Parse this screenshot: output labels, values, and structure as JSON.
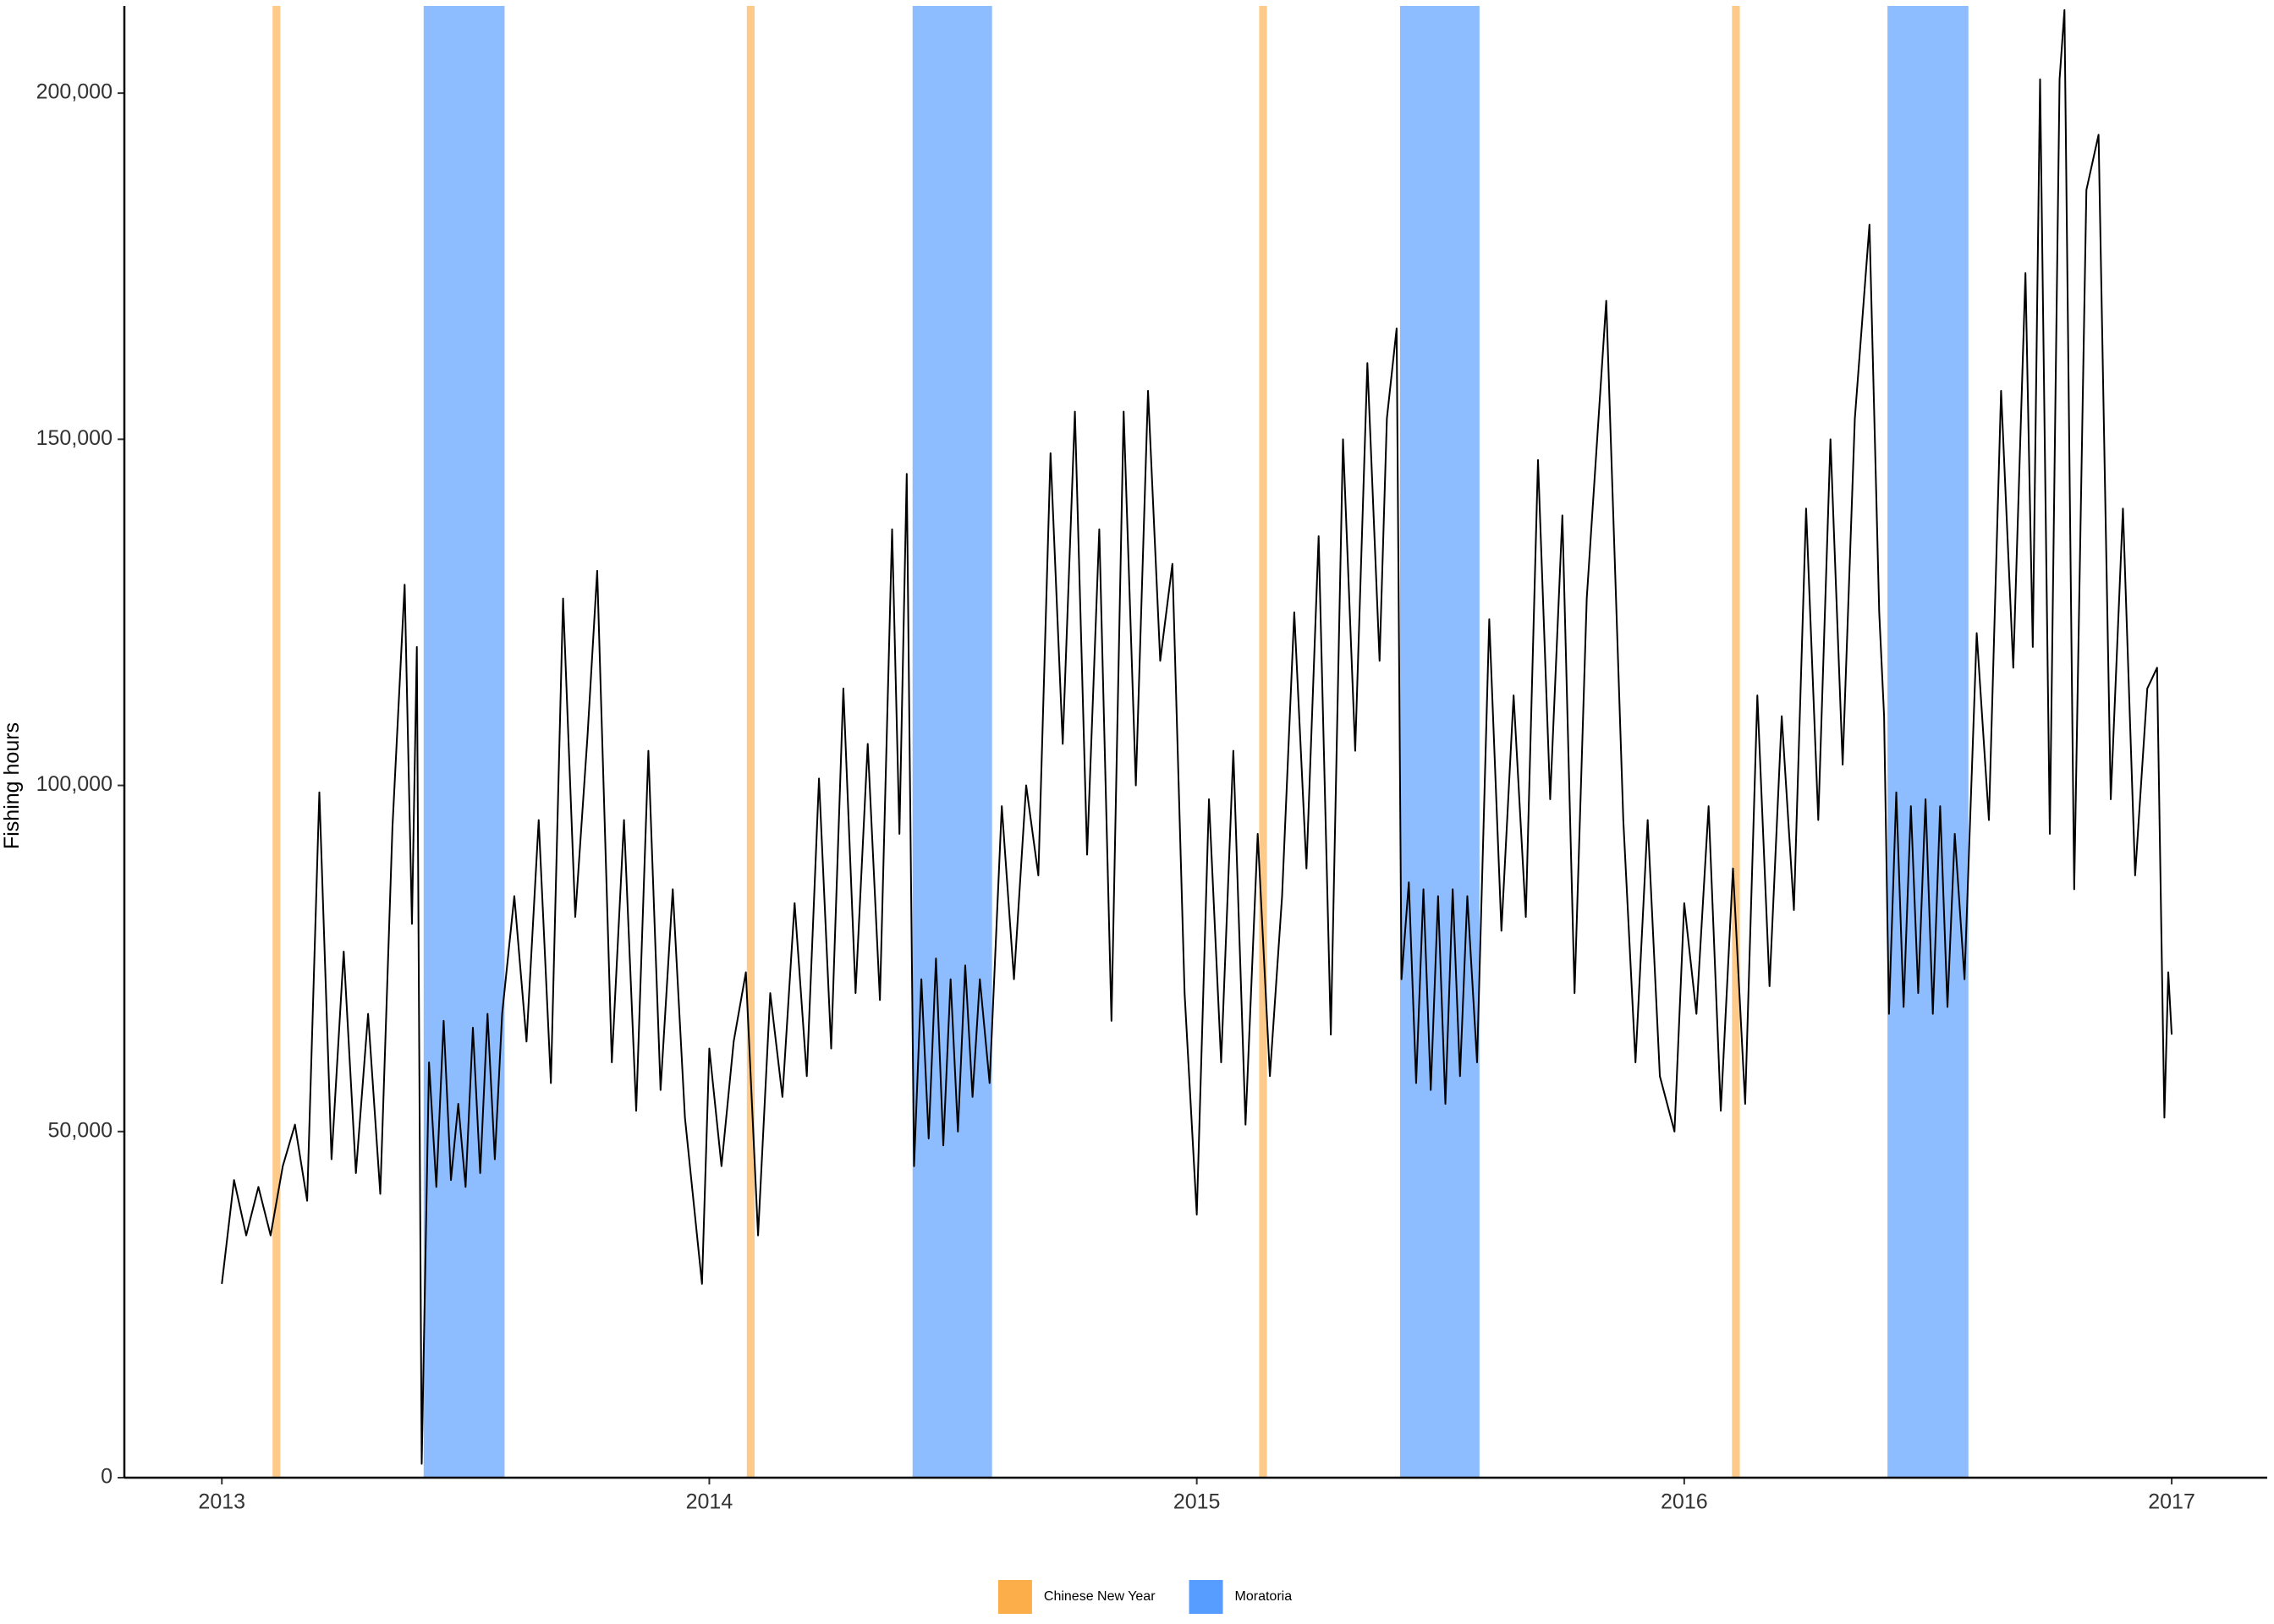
{
  "chart_data": {
    "type": "line",
    "y_label": "Fishing hours",
    "color": "#000000",
    "xlim": [
      2012.8,
      2017.196
    ],
    "ylim": [
      0,
      212600
    ],
    "xticks": [
      2013,
      2014,
      2015,
      2016,
      2017
    ],
    "yticks": [
      0,
      {
        "value": 50000,
        "label": "50,000"
      },
      {
        "value": 100000,
        "label": "100,000"
      },
      {
        "value": 150000,
        "label": "150,000"
      },
      {
        "value": 200000,
        "label": "200,000"
      }
    ],
    "legend": "bottom",
    "shaded_periods": [
      {
        "name": "Chinese New Year",
        "color": "#FCAE4A",
        "opacity": 0.65,
        "ranges": [
          [
            2013.104,
            2013.12
          ],
          [
            2014.077,
            2014.093
          ],
          [
            2015.128,
            2015.144
          ],
          [
            2016.098,
            2016.114
          ]
        ]
      },
      {
        "name": "Moratoria",
        "color": "#579DFF",
        "opacity": 0.68,
        "ranges": [
          [
            2013.414,
            2013.58
          ],
          [
            2014.417,
            2014.58
          ],
          [
            2015.417,
            2015.58
          ],
          [
            2016.417,
            2016.583
          ]
        ]
      }
    ],
    "x": [
      2013.0,
      2013.025,
      2013.05,
      2013.075,
      2013.1,
      2013.125,
      2013.15,
      2013.175,
      2013.2,
      2013.225,
      2013.25,
      2013.275,
      2013.3,
      2013.325,
      2013.35,
      2013.375,
      2013.39,
      2013.4,
      2013.41,
      2013.425,
      2013.44,
      2013.455,
      2013.47,
      2013.485,
      2013.5,
      2013.515,
      2013.53,
      2013.545,
      2013.56,
      2013.575,
      2013.6,
      2013.625,
      2013.65,
      2013.675,
      2013.7,
      2013.725,
      2013.75,
      2013.77,
      2013.8,
      2013.825,
      2013.85,
      2013.875,
      2013.9,
      2013.925,
      2013.95,
      2013.985,
      2014.0,
      2014.025,
      2014.05,
      2014.075,
      2014.1,
      2014.125,
      2014.15,
      2014.175,
      2014.2,
      2014.225,
      2014.25,
      2014.275,
      2014.3,
      2014.325,
      2014.35,
      2014.375,
      2014.39,
      2014.405,
      2014.42,
      2014.435,
      2014.45,
      2014.465,
      2014.48,
      2014.495,
      2014.51,
      2014.525,
      2014.54,
      2014.555,
      2014.575,
      2014.6,
      2014.625,
      2014.65,
      2014.675,
      2014.7,
      2014.725,
      2014.75,
      2014.775,
      2014.8,
      2014.825,
      2014.85,
      2014.875,
      2014.9,
      2014.925,
      2014.95,
      2014.975,
      2015.0,
      2015.025,
      2015.05,
      2015.075,
      2015.1,
      2015.125,
      2015.15,
      2015.175,
      2015.2,
      2015.225,
      2015.25,
      2015.275,
      2015.3,
      2015.325,
      2015.35,
      2015.375,
      2015.39,
      2015.41,
      2015.42,
      2015.435,
      2015.45,
      2015.465,
      2015.48,
      2015.495,
      2015.51,
      2015.525,
      2015.54,
      2015.555,
      2015.575,
      2015.6,
      2015.625,
      2015.65,
      2015.675,
      2015.7,
      2015.725,
      2015.75,
      2015.775,
      2015.8,
      2015.84,
      2015.875,
      2015.9,
      2015.925,
      2015.95,
      2015.98,
      2016.0,
      2016.025,
      2016.05,
      2016.075,
      2016.1,
      2016.125,
      2016.15,
      2016.175,
      2016.2,
      2016.225,
      2016.25,
      2016.275,
      2016.3,
      2016.325,
      2016.35,
      2016.38,
      2016.4,
      2016.41,
      2016.42,
      2016.435,
      2016.45,
      2016.465,
      2016.48,
      2016.495,
      2016.51,
      2016.525,
      2016.54,
      2016.555,
      2016.575,
      2016.6,
      2016.625,
      2016.65,
      2016.675,
      2016.7,
      2016.715,
      2016.73,
      2016.75,
      2016.77,
      2016.78,
      2016.8,
      2016.825,
      2016.85,
      2016.875,
      2016.9,
      2016.925,
      2016.95,
      2016.97,
      2016.985,
      2016.993,
      2017.0
    ],
    "values": [
      28000,
      43000,
      35000,
      42000,
      35000,
      45000,
      51000,
      40000,
      99000,
      46000,
      76000,
      44000,
      67000,
      41000,
      94000,
      129000,
      80000,
      120000,
      2000,
      60000,
      42000,
      66000,
      43000,
      54000,
      42000,
      65000,
      44000,
      67000,
      46000,
      67000,
      84000,
      63000,
      95000,
      57000,
      127000,
      81000,
      107000,
      131000,
      60000,
      95000,
      53000,
      105000,
      56000,
      85000,
      52000,
      28000,
      62000,
      45000,
      63000,
      73000,
      35000,
      70000,
      55000,
      83000,
      58000,
      101000,
      62000,
      114000,
      70000,
      106000,
      69000,
      137000,
      93000,
      145000,
      45000,
      72000,
      49000,
      75000,
      48000,
      72000,
      50000,
      74000,
      55000,
      72000,
      57000,
      97000,
      72000,
      100000,
      87000,
      148000,
      106000,
      154000,
      90000,
      137000,
      66000,
      154000,
      100000,
      157000,
      118000,
      132000,
      70000,
      38000,
      98000,
      60000,
      105000,
      51000,
      93000,
      58000,
      84000,
      125000,
      88000,
      136000,
      64000,
      150000,
      105000,
      161000,
      118000,
      153000,
      166000,
      72000,
      86000,
      57000,
      85000,
      56000,
      84000,
      54000,
      85000,
      58000,
      84000,
      60000,
      124000,
      79000,
      113000,
      81000,
      147000,
      98000,
      139000,
      70000,
      127000,
      170000,
      95000,
      60000,
      95000,
      58000,
      50000,
      83000,
      67000,
      97000,
      53000,
      88000,
      54000,
      113000,
      71000,
      110000,
      82000,
      140000,
      95000,
      150000,
      103000,
      153000,
      181000,
      125000,
      110000,
      67000,
      99000,
      68000,
      97000,
      70000,
      98000,
      67000,
      97000,
      68000,
      93000,
      72000,
      122000,
      95000,
      157000,
      117000,
      174000,
      120000,
      202000,
      93000,
      202000,
      212000,
      85000,
      186000,
      194000,
      98000,
      140000,
      87000,
      114000,
      117000,
      52000,
      73000,
      64000
    ]
  }
}
